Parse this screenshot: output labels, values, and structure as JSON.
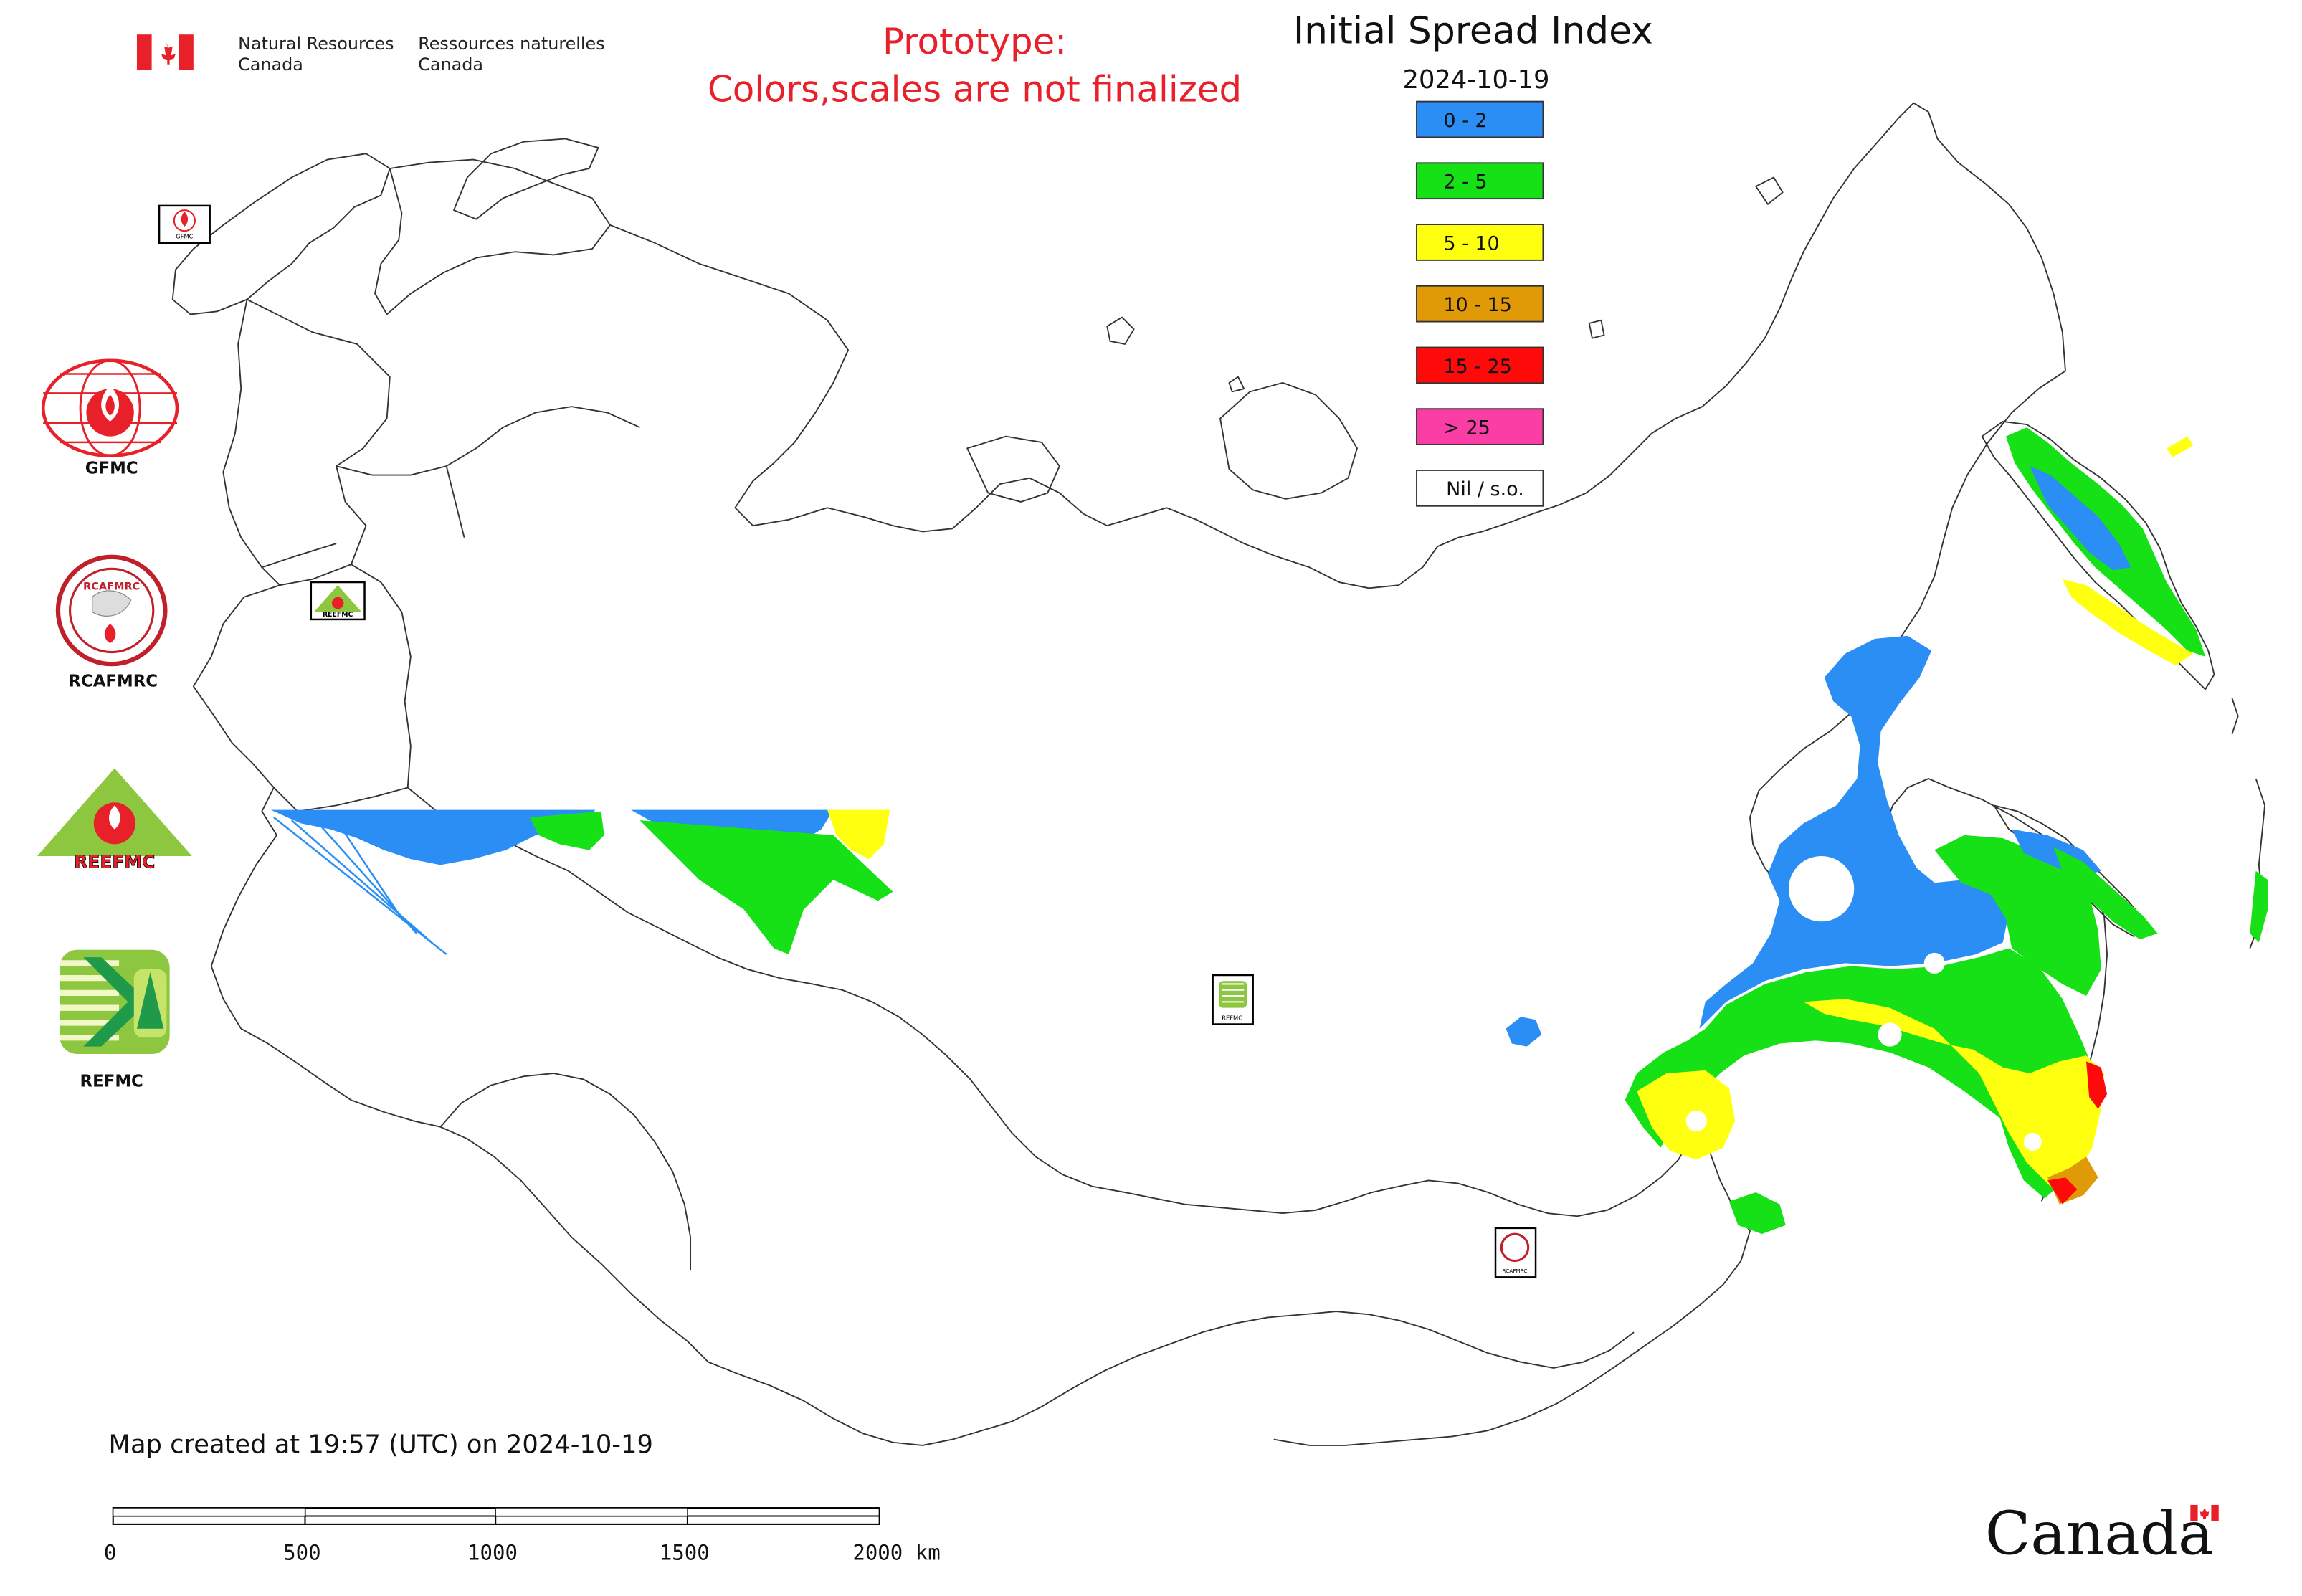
{
  "header": {
    "nrcan_en_line1": "Natural Resources",
    "nrcan_en_line2": "Canada",
    "nrcan_fr_line1": "Ressources naturelles",
    "nrcan_fr_line2": "Canada",
    "notice_line1": "Prototype:",
    "notice_line2": "Colors,scales are not finalized",
    "notice_color": "#e8202a"
  },
  "title": "Initial Spread Index",
  "date": "2024-10-19",
  "legend": [
    {
      "label": "0 - 2",
      "color": "#2b8ef5"
    },
    {
      "label": "2 - 5",
      "color": "#16e016"
    },
    {
      "label": "5 - 10",
      "color": "#ffff10"
    },
    {
      "label": "10 - 15",
      "color": "#e09a08"
    },
    {
      "label": "15 - 25",
      "color": "#fe0a0a"
    },
    {
      "label": "> 25",
      "color": "#fa3ea6"
    },
    {
      "label": "Nil / s.o.",
      "color": "#ffffff"
    }
  ],
  "side_logos": {
    "gfmc": "GFMC",
    "rcafmrc": "RCAFMRC",
    "reefmc": "REEFMC",
    "refmc": "REFMC",
    "reefmc_wordmark": "REEFMC",
    "rcafmrc_small": "RCAFMRC"
  },
  "map_markers": {
    "gfmc_tag": "GFMC",
    "reefmc_tag": "REEFMC",
    "refmc_tag": "REFMC",
    "rcafmrc_tag": "RCAFMRC"
  },
  "footer": {
    "created": "Map created at 19:57 (UTC) on 2024-10-19",
    "scale_ticks": [
      "0",
      "500",
      "1000",
      "1500",
      "2000 km"
    ],
    "wordmark": "Canada"
  },
  "icons": {
    "flag": "canada-flag-icon",
    "gfmc": "gfmc-flame-globe-icon",
    "rcafmrc": "rcafmrc-seal-icon",
    "reefmc": "reefmc-triangle-icon",
    "refmc": "refmc-sigma-icon"
  }
}
